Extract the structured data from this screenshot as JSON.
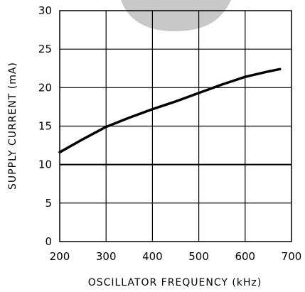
{
  "chart_data": {
    "type": "line",
    "title": "",
    "xlabel": "OSCILLATOR FREQUENCY (kHz)",
    "ylabel": "SUPPLY CURRENT (mA)",
    "xlim": [
      200,
      700
    ],
    "ylim": [
      0,
      30
    ],
    "x_ticks": [
      200,
      300,
      400,
      500,
      600,
      700
    ],
    "y_ticks": [
      0,
      5,
      10,
      15,
      20,
      25,
      30
    ],
    "grid": true,
    "series": [
      {
        "x": [
          200,
          250,
          300,
          350,
          400,
          450,
          500,
          550,
          600,
          650,
          675
        ],
        "y": [
          11.6,
          13.3,
          14.9,
          16.1,
          17.2,
          18.2,
          19.3,
          20.4,
          21.4,
          22.1,
          22.4
        ],
        "color": "#000000"
      }
    ],
    "watermark_color": "#c8c8c8"
  }
}
